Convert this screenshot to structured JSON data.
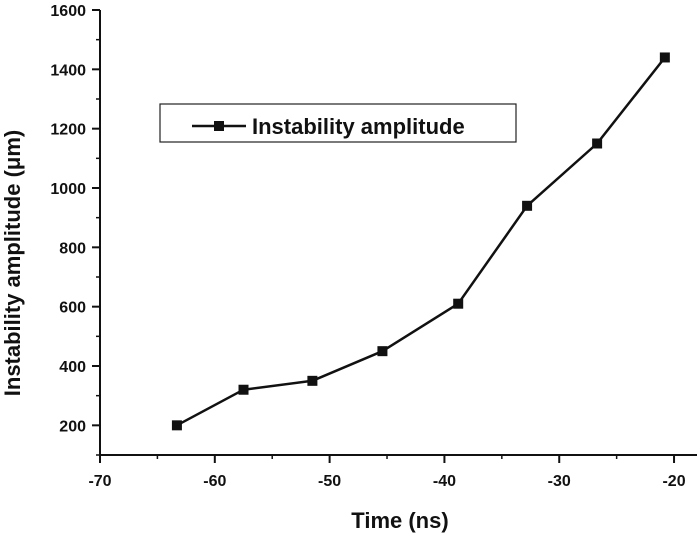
{
  "chart_data": {
    "type": "line",
    "title": "",
    "xlabel": "Time (ns)",
    "ylabel": "Instability amplitude (μm)",
    "xlim": [
      -70,
      -18
    ],
    "ylim": [
      100,
      1600
    ],
    "xticks": [
      -70,
      -60,
      -50,
      -40,
      -30,
      -20
    ],
    "yticks": [
      200,
      400,
      600,
      800,
      1000,
      1200,
      1400,
      1600
    ],
    "grid": false,
    "legend_position": "top-left",
    "series": [
      {
        "name": "Instability amplitude",
        "marker": "square",
        "color": "#111111",
        "x": [
          -63.3,
          -57.5,
          -51.5,
          -45.4,
          -38.8,
          -32.8,
          -26.7,
          -20.8
        ],
        "y": [
          200,
          320,
          350,
          450,
          610,
          940,
          1150,
          1440
        ]
      }
    ]
  }
}
